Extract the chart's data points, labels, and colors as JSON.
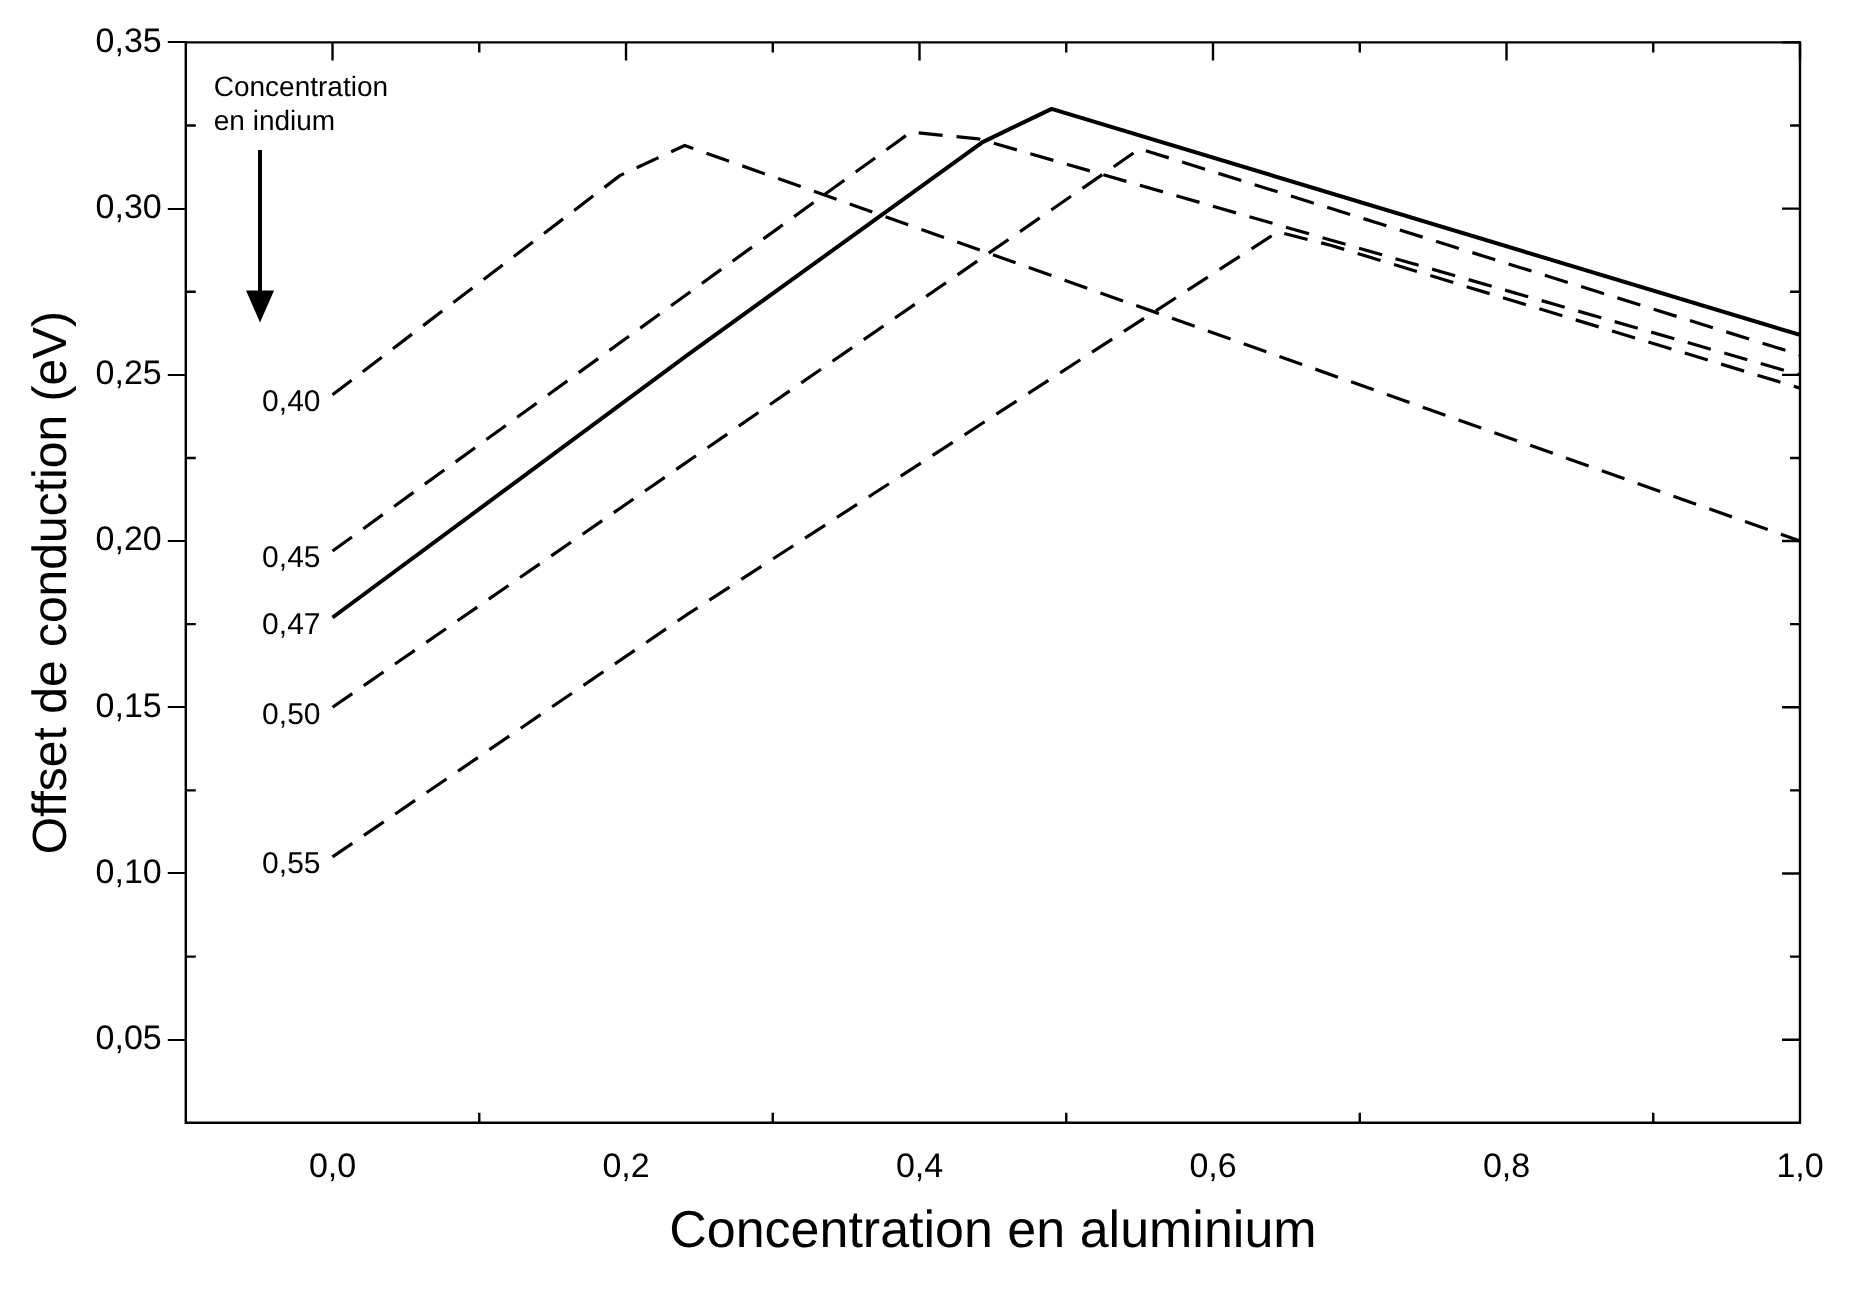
{
  "chart_data": {
    "type": "line",
    "xlabel": "Concentration en aluminium",
    "ylabel": "Offset de conduction (eV)",
    "annotations": [
      "Concentration en indium"
    ],
    "xlim": [
      -0.1,
      1.0
    ],
    "xticks": [
      {
        "value": 0,
        "label": "0,0"
      },
      {
        "value": 0.2,
        "label": "0,2"
      },
      {
        "value": 0.4,
        "label": "0,4"
      },
      {
        "value": 0.6,
        "label": "0,6"
      },
      {
        "value": 0.8,
        "label": "0,8"
      },
      {
        "value": 1.0,
        "label": "1,0"
      }
    ],
    "ylim": [
      0.025,
      0.35
    ],
    "yticks": [
      {
        "value": 0.05,
        "label": "0,05"
      },
      {
        "value": 0.1,
        "label": "0,10"
      },
      {
        "value": 0.15,
        "label": "0,15"
      },
      {
        "value": 0.2,
        "label": "0,20"
      },
      {
        "value": 0.25,
        "label": "0,25"
      },
      {
        "value": 0.3,
        "label": "0,30"
      },
      {
        "value": 0.35,
        "label": "0,35"
      }
    ],
    "grid": false,
    "legend": false,
    "marker": "none",
    "series": [
      {
        "name": "0,40",
        "color": "#000000",
        "line_style": "dashed",
        "x": [
          0,
          0.196,
          0.24,
          1.0
        ],
        "values": [
          0.244,
          0.31,
          0.319,
          0.2
        ]
      },
      {
        "name": "0,45",
        "color": "#000000",
        "line_style": "dashed",
        "x": [
          0,
          0.394,
          0.44,
          1.0
        ],
        "values": [
          0.197,
          0.323,
          0.321,
          0.25
        ]
      },
      {
        "name": "0,47",
        "color": "#000000",
        "line_style": "solid",
        "x": [
          0,
          0.242,
          0.443,
          0.49,
          1.0
        ],
        "values": [
          0.177,
          0.256,
          0.32,
          0.33,
          0.262
        ]
      },
      {
        "name": "0,50",
        "color": "#000000",
        "line_style": "dashed",
        "x": [
          0,
          0.55,
          1.0
        ],
        "values": [
          0.15,
          0.318,
          0.256
        ]
      },
      {
        "name": "0,55",
        "color": "#000000",
        "line_style": "dashed",
        "x": [
          0,
          0.242,
          0.644,
          0.68,
          1.0
        ],
        "values": [
          0.105,
          0.178,
          0.293,
          0.289,
          0.246
        ]
      }
    ]
  }
}
